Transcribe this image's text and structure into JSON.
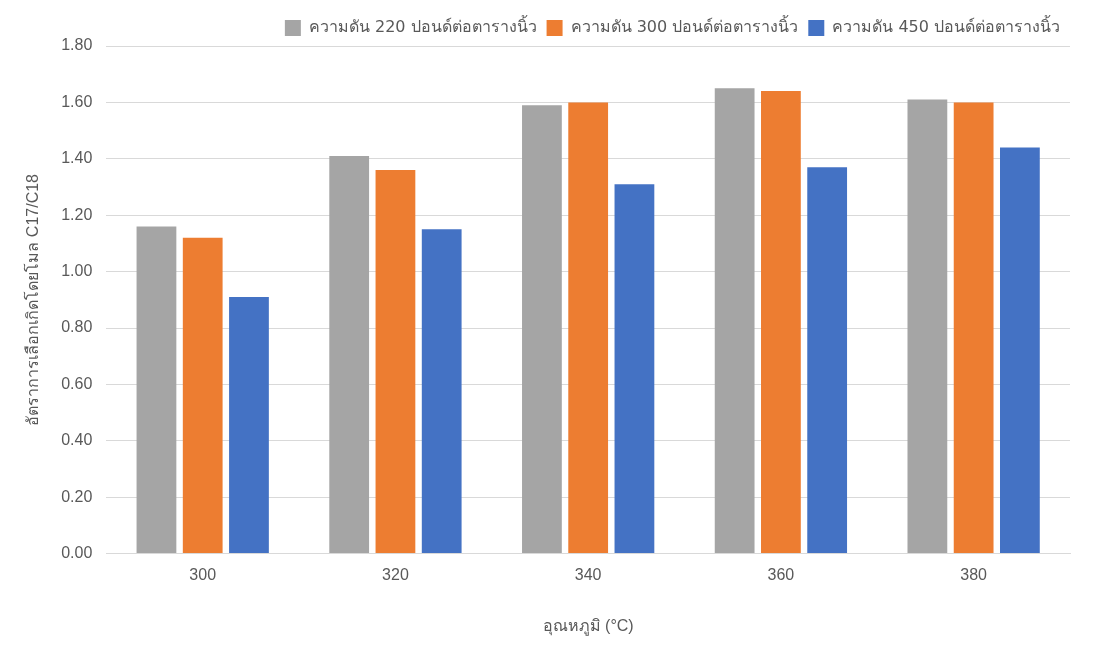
{
  "chart_data": {
    "type": "bar",
    "xlabel": "อุณหภูมิ (°C)",
    "ylabel": "อัตราการเลือกเกิดโดยโมล C17/C18",
    "categories": [
      "300",
      "320",
      "340",
      "360",
      "380"
    ],
    "series": [
      {
        "name": "ความดัน 220 ปอนด์ต่อตารางนิ้ว",
        "color": "#a5a5a5",
        "values": [
          1.16,
          1.41,
          1.59,
          1.65,
          1.61
        ]
      },
      {
        "name": "ความดัน 300 ปอนด์ต่อตารางนิ้ว",
        "color": "#ed7d31",
        "values": [
          1.12,
          1.36,
          1.6,
          1.64,
          1.6
        ]
      },
      {
        "name": "ความดัน 450 ปอนด์ต่อตารางนิ้ว",
        "color": "#4472c4",
        "values": [
          0.91,
          1.15,
          1.31,
          1.37,
          1.44
        ]
      }
    ],
    "ylim": [
      0,
      1.8
    ],
    "yticks": [
      {
        "value": 0,
        "label": "0.00"
      },
      {
        "value": 0.2,
        "label": "0.20"
      },
      {
        "value": 0.4,
        "label": "0.40"
      },
      {
        "value": 0.6,
        "label": "0.60"
      },
      {
        "value": 0.8,
        "label": "0.80"
      },
      {
        "value": 1.0,
        "label": "1.00"
      },
      {
        "value": 1.2,
        "label": "1.20"
      },
      {
        "value": 1.4,
        "label": "1.40"
      },
      {
        "value": 1.6,
        "label": "1.60"
      },
      {
        "value": 1.8,
        "label": "1.80"
      }
    ],
    "grid": "y",
    "legend": "top"
  }
}
